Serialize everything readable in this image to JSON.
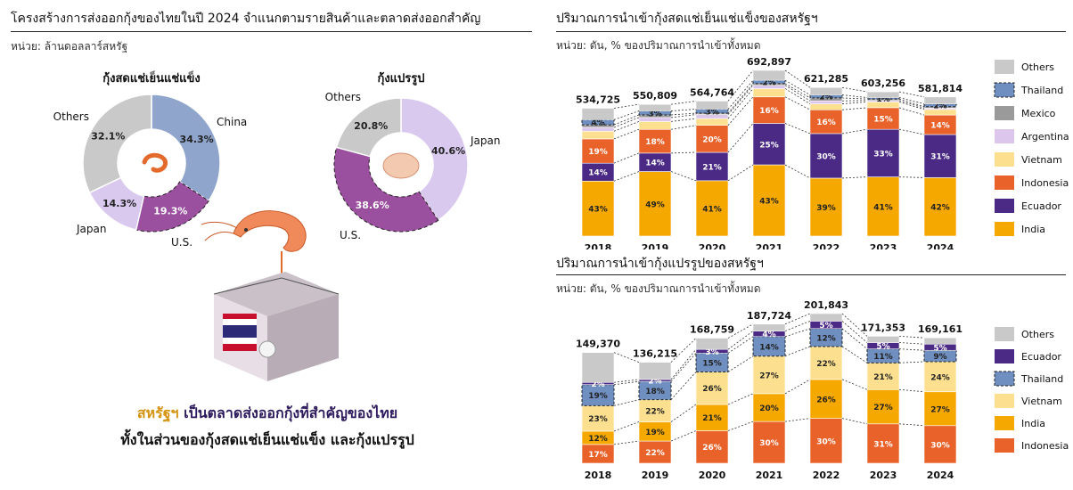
{
  "left": {
    "title": "โครงสร้างการส่งออกกุ้งของไทยในปี 2024 จำแนกตามรายสินค้าและตลาดส่งออกสำคัญ",
    "unit": "หน่วย: ล้านดอลลาร์สหรัฐ",
    "message_highlight": "สหรัฐฯ",
    "message_rest": " เป็นตลาดส่งออกกุ้งที่สำคัญของไทย",
    "message_line2": "ทั้งในส่วนของกุ้งสดแช่เย็นแช่แข็ง และกุ้งแปรรูป"
  },
  "right_top": {
    "title": "ปริมาณการนำเข้ากุ้งสดแช่เย็นแช่แข็งของสหรัฐฯ",
    "unit": "หน่วย: ตัน, % ของปริมาณการนำเข้าทั้งหมด"
  },
  "right_bottom": {
    "title": "ปริมาณการนำเข้ากุ้งแปรรูปของสหรัฐฯ",
    "unit": "หน่วย: ตัน, % ของปริมาณการนำเข้าทั้งหมด"
  },
  "colors": {
    "china": "#8fa5cc",
    "us": "#9b4f9f",
    "japan": "#d9c9ef",
    "others": "#c9c9c9",
    "india": "#f5a800",
    "ecuador": "#4b2a86",
    "indonesia": "#e8622a",
    "vietnam": "#fde08f",
    "argentina": "#dcc6ec",
    "mexico": "#9a9a9a",
    "thailand": "#6f8fc0",
    "others_bar": "#c9c9c9"
  },
  "chart_data": [
    {
      "type": "pie",
      "title": "กุ้งสดแช่เย็นแช่แข็ง",
      "slices": [
        {
          "name": "China",
          "value": 34.3,
          "label": "34.3%"
        },
        {
          "name": "U.S.",
          "value": 19.3,
          "label": "19.3%"
        },
        {
          "name": "Japan",
          "value": 14.3,
          "label": "14.3%"
        },
        {
          "name": "Others",
          "value": 32.1,
          "label": "32.1%"
        }
      ]
    },
    {
      "type": "pie",
      "title": "กุ้งแปรรูป",
      "slices": [
        {
          "name": "Japan",
          "value": 40.6,
          "label": "40.6%"
        },
        {
          "name": "U.S.",
          "value": 38.6,
          "label": "38.6%"
        },
        {
          "name": "Others",
          "value": 20.8,
          "label": "20.8%"
        }
      ]
    },
    {
      "type": "bar",
      "title": "ปริมาณการนำเข้ากุ้งสดแช่เย็นแช่แข็งของสหรัฐฯ",
      "categories": [
        "2018",
        "2019",
        "2020",
        "2021",
        "2022",
        "2023",
        "2024"
      ],
      "totals": [
        534725,
        550809,
        564764,
        692897,
        621285,
        603256,
        581814
      ],
      "total_labels": [
        "534,725",
        "550,809",
        "564,764",
        "692,897",
        "621,285",
        "603,256",
        "581,814"
      ],
      "series": [
        {
          "name": "India",
          "values": [
            43,
            49,
            41,
            43,
            39,
            41,
            42
          ],
          "labels": [
            "43%",
            "49%",
            "41%",
            "43%",
            "39%",
            "41%",
            "42%"
          ]
        },
        {
          "name": "Ecuador",
          "values": [
            14,
            14,
            21,
            25,
            30,
            33,
            31
          ],
          "labels": [
            "14%",
            "14%",
            "21%",
            "25%",
            "30%",
            "33%",
            "31%"
          ]
        },
        {
          "name": "Indonesia",
          "values": [
            19,
            18,
            20,
            16,
            16,
            15,
            14
          ],
          "labels": [
            "19%",
            "18%",
            "20%",
            "16%",
            "16%",
            "15%",
            "14%"
          ]
        },
        {
          "name": "Vietnam",
          "values": [
            6,
            6,
            5,
            5,
            4,
            4,
            4
          ],
          "labels": [
            "",
            "",
            "",
            "",
            "",
            "",
            ""
          ]
        },
        {
          "name": "Argentina",
          "values": [
            3,
            3,
            3,
            2,
            2,
            1,
            1
          ],
          "labels": [
            "",
            "",
            "",
            "",
            "",
            "",
            ""
          ]
        },
        {
          "name": "Mexico",
          "values": [
            2,
            2,
            1,
            1,
            2,
            1,
            1
          ],
          "labels": [
            "",
            "",
            "",
            "",
            "",
            "",
            ""
          ]
        },
        {
          "name": "Thailand",
          "values": [
            4,
            3,
            3,
            2,
            2,
            1,
            2
          ],
          "labels": [
            "4%",
            "3%",
            "3%",
            "2%",
            "2%",
            "1%",
            "2%"
          ]
        },
        {
          "name": "Others",
          "values": [
            9,
            5,
            6,
            6,
            5,
            4,
            5
          ],
          "labels": [
            "",
            "",
            "",
            "",
            "",
            "",
            ""
          ]
        }
      ],
      "legend": [
        "Others",
        "Thailand",
        "Mexico",
        "Argentina",
        "Vietnam",
        "Indonesia",
        "Ecuador",
        "India"
      ],
      "legend_placement": "right"
    },
    {
      "type": "bar",
      "title": "ปริมาณการนำเข้ากุ้งแปรรูปของสหรัฐฯ",
      "categories": [
        "2018",
        "2019",
        "2020",
        "2021",
        "2022",
        "2023",
        "2024"
      ],
      "totals": [
        149370,
        136215,
        168759,
        187724,
        201843,
        171353,
        169161
      ],
      "total_labels": [
        "149,370",
        "136,215",
        "168,759",
        "187,724",
        "201,843",
        "171,353",
        "169,161"
      ],
      "series": [
        {
          "name": "Indonesia",
          "values": [
            17,
            22,
            26,
            30,
            30,
            31,
            30
          ],
          "labels": [
            "17%",
            "22%",
            "26%",
            "30%",
            "30%",
            "31%",
            "30%"
          ]
        },
        {
          "name": "India",
          "values": [
            12,
            19,
            21,
            20,
            26,
            27,
            27
          ],
          "labels": [
            "12%",
            "19%",
            "21%",
            "20%",
            "26%",
            "27%",
            "27%"
          ]
        },
        {
          "name": "Vietnam",
          "values": [
            23,
            22,
            26,
            27,
            22,
            21,
            24
          ],
          "labels": [
            "23%",
            "22%",
            "26%",
            "27%",
            "22%",
            "21%",
            "24%"
          ]
        },
        {
          "name": "Thailand",
          "values": [
            19,
            18,
            15,
            14,
            12,
            11,
            9
          ],
          "labels": [
            "19%",
            "18%",
            "15%",
            "14%",
            "12%",
            "11%",
            "9%"
          ]
        },
        {
          "name": "Ecuador",
          "values": [
            2,
            2,
            3,
            4,
            5,
            5,
            5
          ],
          "labels": [
            "2%",
            "2%",
            "3%",
            "4%",
            "5%",
            "5%",
            "5%"
          ]
        },
        {
          "name": "Others",
          "values": [
            27,
            17,
            9,
            5,
            5,
            5,
            5
          ],
          "labels": [
            "",
            "",
            "",
            "",
            "",
            "",
            ""
          ]
        }
      ],
      "legend": [
        "Others",
        "Ecuador",
        "Thailand",
        "Vietnam",
        "India",
        "Indonesia"
      ],
      "legend_placement": "right"
    }
  ]
}
